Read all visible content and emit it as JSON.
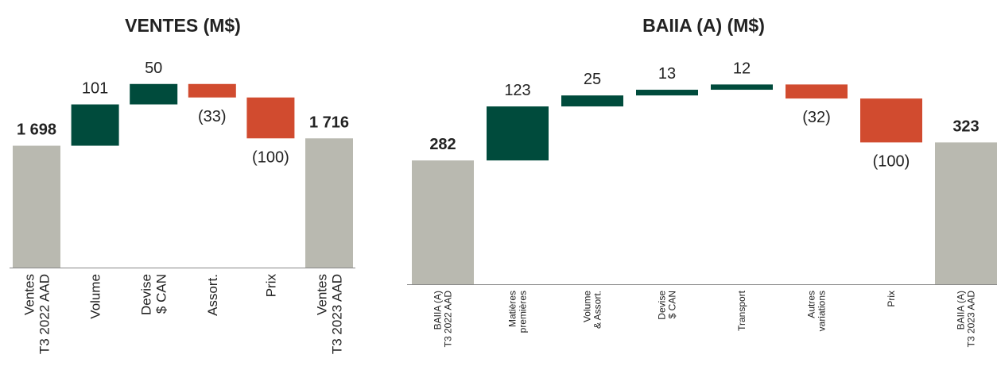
{
  "chart_data": [
    {
      "type": "waterfall",
      "title": "VENTES (M$)",
      "categories": [
        "Ventes\nT3 2022 AAD",
        "Volume",
        "Devise\n$ CAN",
        "Assort.",
        "Prix",
        "Ventes\nT3 2023 AAD"
      ],
      "values": [
        1698,
        101,
        50,
        -33,
        -100,
        1716
      ],
      "value_labels": [
        "1 698",
        "101",
        "50",
        "(33)",
        "(100)",
        "1 716"
      ],
      "total_color": "#b9b9b0",
      "increase_color": "#004b3c",
      "decrease_color": "#d14b2f",
      "ylim": [
        1400,
        1900
      ]
    },
    {
      "type": "waterfall",
      "title": "BAIIA (A) (M$)",
      "categories": [
        "BAIIA (A)\nT3 2022 AAD",
        "Matières\npremières",
        "Volume\n& Assort.",
        "Devise\n$ CAN",
        "Transport",
        "Autres\nvariations",
        "Prix",
        "BAIIA (A)\nT3 2023 AAD"
      ],
      "values": [
        282,
        123,
        25,
        13,
        12,
        -32,
        -100,
        323
      ],
      "value_labels": [
        "282",
        "123",
        "25",
        "13",
        "12",
        "(32)",
        "(100)",
        "323"
      ],
      "total_color": "#b9b9b0",
      "increase_color": "#004b3c",
      "decrease_color": "#d14b2f",
      "ylim": [
        0,
        500
      ]
    }
  ]
}
